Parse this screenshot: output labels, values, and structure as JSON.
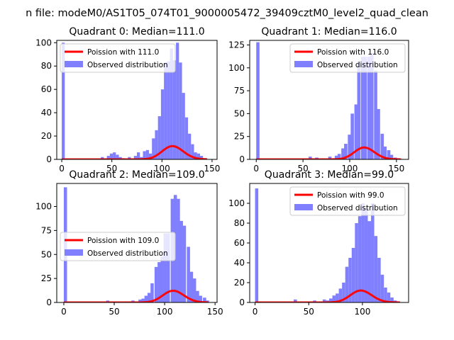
{
  "figure": {
    "suptitle": "n file: modeM0/AS1T05_074T01_9000005472_39409cztM0_level2_quad_clean",
    "colors": {
      "fit": "#ff0000",
      "hist": "#8080ff",
      "axis": "#000000"
    }
  },
  "chart_data": [
    {
      "type": "bar",
      "title": "Quadrant 0: Median=111.0",
      "xlabel": "",
      "ylabel": "",
      "xlim": [
        -5,
        155
      ],
      "ylim": [
        0,
        102
      ],
      "xticks": [
        0,
        50,
        100,
        150
      ],
      "yticks": [
        0,
        20,
        40,
        60,
        80,
        100
      ],
      "legend_loc": "upper-left",
      "legend": [
        "Poission with 111.0",
        "Observed distribution"
      ],
      "series": [
        {
          "name": "Observed distribution",
          "type": "hist",
          "bin_width": 3,
          "x": [
            0,
            39,
            45,
            48,
            51,
            54,
            57,
            60,
            66,
            72,
            75,
            78,
            81,
            84,
            87,
            90,
            93,
            96,
            99,
            102,
            105,
            108,
            111,
            114,
            117,
            120,
            123,
            126,
            129,
            132,
            135,
            138,
            141
          ],
          "values": [
            100,
            2,
            3,
            5,
            6,
            4,
            2,
            1,
            2,
            3,
            6,
            2,
            7,
            8,
            5,
            18,
            25,
            37,
            60,
            83,
            84,
            95,
            85,
            100,
            83,
            57,
            36,
            22,
            13,
            6,
            5,
            3,
            1
          ]
        },
        {
          "name": "Poission with 111.0",
          "type": "poisson",
          "lambda": 111,
          "scale": 3.0,
          "x_range": [
            0,
            145
          ]
        }
      ]
    },
    {
      "type": "bar",
      "title": "Quadrant 1: Median=116.0",
      "xlabel": "",
      "ylabel": "",
      "xlim": [
        -7,
        163
      ],
      "ylim": [
        0,
        130
      ],
      "xticks": [
        0,
        50,
        100,
        150
      ],
      "yticks": [
        0,
        25,
        50,
        75,
        100,
        125
      ],
      "legend_loc": "upper-right",
      "legend": [
        "Poission with 116.0",
        "Observed distribution"
      ],
      "series": [
        {
          "name": "Observed distribution",
          "type": "hist",
          "bin_width": 3.5,
          "x": [
            0,
            56,
            63,
            70,
            77,
            84,
            87,
            91,
            94,
            98,
            101,
            105,
            108,
            112,
            115,
            119,
            122,
            126,
            129,
            133,
            136,
            140,
            143,
            147,
            150
          ],
          "values": [
            128,
            3,
            2,
            1,
            3,
            4,
            6,
            12,
            17,
            27,
            50,
            60,
            107,
            112,
            112,
            112,
            116,
            97,
            55,
            28,
            14,
            10,
            5,
            2,
            1
          ]
        },
        {
          "name": "Poission with 116.0",
          "type": "poisson",
          "lambda": 116,
          "scale": 3.5,
          "x_range": [
            0,
            155
          ]
        }
      ]
    },
    {
      "type": "bar",
      "title": "Quadrant 2: Median=109.0",
      "xlabel": "",
      "ylabel": "",
      "xlim": [
        -7,
        152
      ],
      "ylim": [
        0,
        124
      ],
      "xticks": [
        0,
        50,
        100,
        150
      ],
      "yticks": [
        0,
        25,
        50,
        75,
        100
      ],
      "legend_loc": "center-left",
      "legend": [
        "Poission with 109.0",
        "Observed distribution"
      ],
      "series": [
        {
          "name": "Observed distribution",
          "type": "hist",
          "bin_width": 3.2,
          "x": [
            0,
            42,
            61,
            67,
            74,
            77,
            80,
            83,
            86,
            90,
            93,
            96,
            99,
            102,
            106,
            109,
            112,
            115,
            118,
            122,
            125,
            128,
            131,
            134,
            138,
            141
          ],
          "values": [
            120,
            2,
            1,
            2,
            3,
            4,
            7,
            10,
            20,
            37,
            42,
            48,
            72,
            72,
            108,
            112,
            108,
            85,
            80,
            58,
            32,
            25,
            12,
            7,
            5,
            2
          ]
        },
        {
          "name": "Poission with 109.0",
          "type": "poisson",
          "lambda": 109,
          "scale": 3.2,
          "x_range": [
            0,
            143
          ]
        }
      ]
    },
    {
      "type": "bar",
      "title": "Quadrant 3: Median=99.0",
      "xlabel": "",
      "ylabel": "",
      "xlim": [
        -5,
        143
      ],
      "ylim": [
        0,
        120
      ],
      "xticks": [
        0,
        50,
        100
      ],
      "yticks": [
        0,
        20,
        40,
        60,
        80,
        100
      ],
      "legend_loc": "upper-right",
      "legend": [
        "Poission with 99.0",
        "Observed distribution"
      ],
      "series": [
        {
          "name": "Observed distribution",
          "type": "hist",
          "bin_width": 3,
          "x": [
            0,
            36,
            54,
            60,
            63,
            66,
            69,
            72,
            75,
            78,
            81,
            84,
            87,
            90,
            93,
            96,
            99,
            102,
            105,
            108,
            111,
            114,
            117,
            120,
            123,
            126,
            129,
            132
          ],
          "values": [
            115,
            3,
            2,
            1,
            3,
            2,
            4,
            7,
            9,
            14,
            20,
            36,
            45,
            55,
            80,
            87,
            100,
            95,
            82,
            100,
            67,
            45,
            28,
            15,
            10,
            5,
            2,
            1
          ]
        },
        {
          "name": "Poission with 99.0",
          "type": "poisson",
          "lambda": 99,
          "scale": 3.0,
          "x_range": [
            0,
            135
          ]
        }
      ]
    }
  ]
}
